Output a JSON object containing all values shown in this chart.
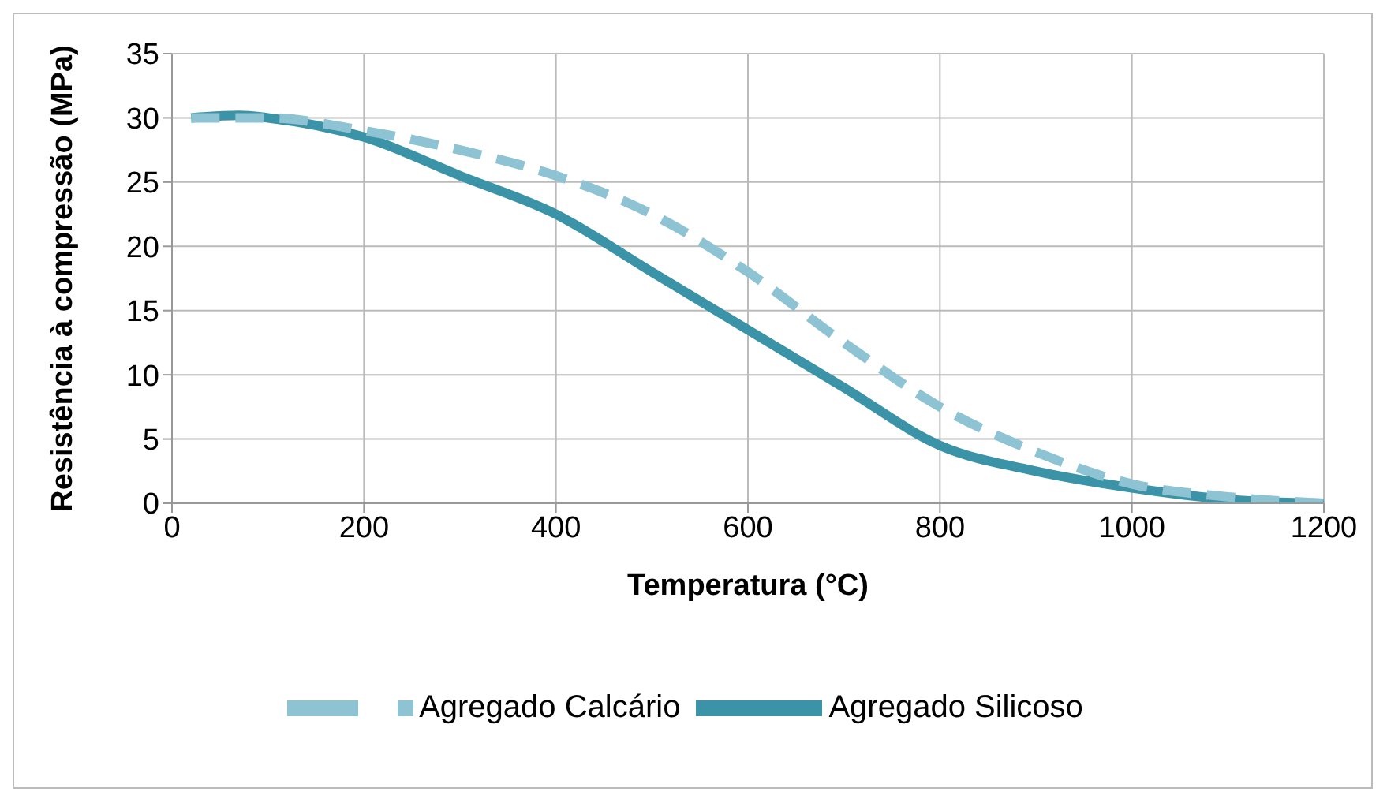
{
  "chart_data": {
    "type": "line",
    "xlabel": "Temperatura (°C)",
    "ylabel": "Resistência à compressão (MPa)",
    "xlim": [
      0,
      1200
    ],
    "xticks": [
      0,
      200,
      400,
      600,
      800,
      1000,
      1200
    ],
    "ylim": [
      0,
      35
    ],
    "yticks": [
      0,
      5,
      10,
      15,
      20,
      25,
      30,
      35
    ],
    "grid": true,
    "legend": "bottom",
    "marker": "none",
    "series": [
      {
        "name": "Agregado Silicoso",
        "color": "#3a93a6",
        "line_style": "solid",
        "x": [
          20,
          70,
          100,
          200,
          300,
          400,
          500,
          600,
          700,
          800,
          900,
          1000,
          1100,
          1200
        ],
        "values": [
          30,
          30.2,
          30,
          28.5,
          25.5,
          22.5,
          18,
          13.5,
          9,
          4.5,
          2.5,
          1.2,
          0.3,
          0
        ]
      },
      {
        "name": "Agregado Calcário",
        "color": "#8ec3d4",
        "line_style": "dashed",
        "x": [
          20,
          100,
          200,
          300,
          400,
          500,
          600,
          700,
          800,
          900,
          1000,
          1100,
          1200
        ],
        "values": [
          30,
          30,
          29,
          27.5,
          25.5,
          22.5,
          18,
          12.5,
          7.5,
          4,
          1.5,
          0.5,
          0
        ]
      }
    ]
  }
}
